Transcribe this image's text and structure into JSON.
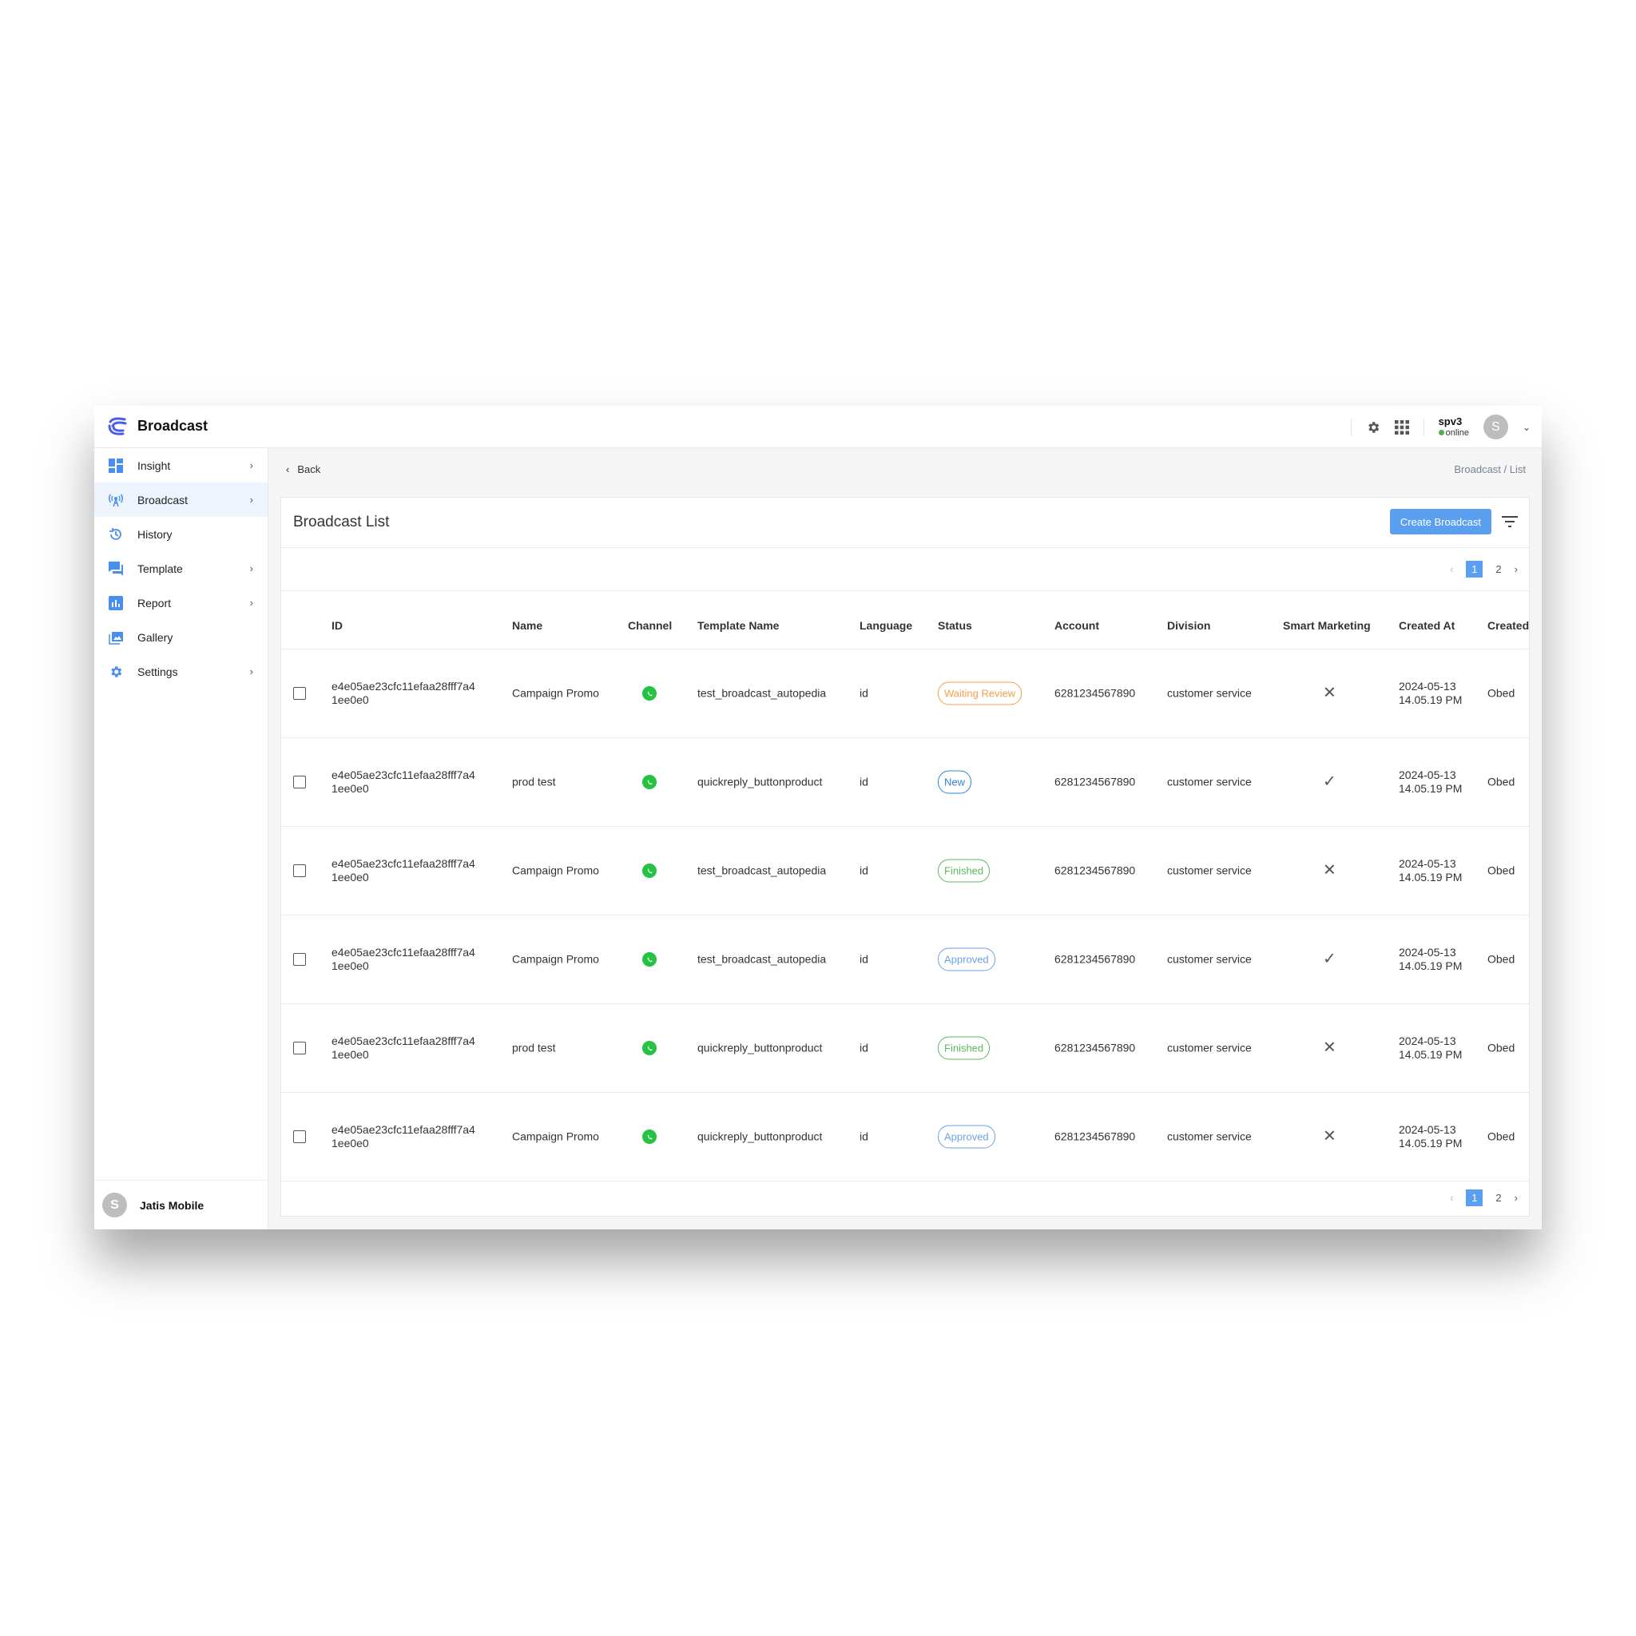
{
  "app": {
    "title": "Broadcast",
    "user_name": "spv3",
    "user_status": "online",
    "avatar_letter": "S"
  },
  "sidebar": {
    "items": [
      {
        "label": "Insight",
        "icon": "dashboard-icon",
        "chevron": true
      },
      {
        "label": "Broadcast",
        "icon": "broadcast-antenna-icon",
        "chevron": true,
        "active": true
      },
      {
        "label": "History",
        "icon": "history-icon",
        "chevron": false
      },
      {
        "label": "Template",
        "icon": "chat-icon",
        "chevron": true
      },
      {
        "label": "Report",
        "icon": "bar-chart-icon",
        "chevron": true
      },
      {
        "label": "Gallery",
        "icon": "gallery-icon",
        "chevron": false
      },
      {
        "label": "Settings",
        "icon": "gear-icon",
        "chevron": true
      }
    ],
    "footer": {
      "avatar_letter": "S",
      "org": "Jatis Mobile"
    }
  },
  "nav": {
    "back": "Back",
    "breadcrumb": "Broadcast / List"
  },
  "card": {
    "title": "Broadcast List",
    "create_button": "Create Broadcast"
  },
  "pagination": {
    "current": "1",
    "next_page": "2",
    "prev": "‹",
    "next": "›"
  },
  "table": {
    "columns": [
      "ID",
      "Name",
      "Channel",
      "Template Name",
      "Language",
      "Status",
      "Account",
      "Division",
      "Smart Marketing",
      "Created At",
      "Created"
    ],
    "rows": [
      {
        "id1": "e4e05ae23cfc11efaa28fff7a4",
        "id2": "1ee0e0",
        "name": "Campaign Promo",
        "template": "test_broadcast_autopedia",
        "lang": "id",
        "status": "Waiting Review",
        "status_color": "#f5a04a",
        "account": "6281234567890",
        "division": "customer service",
        "smart": "✕",
        "date": "2024-05-13",
        "time": "14.05.19 PM",
        "created": "Obed"
      },
      {
        "id1": "e4e05ae23cfc11efaa28fff7a4",
        "id2": "1ee0e0",
        "name": "prod test",
        "template": "quickreply_buttonproduct",
        "lang": "id",
        "status": "New",
        "status_color": "#2f86d6",
        "account": "6281234567890",
        "division": "customer service",
        "smart": "✓",
        "date": "2024-05-13",
        "time": "14.05.19 PM",
        "created": "Obed"
      },
      {
        "id1": "e4e05ae23cfc11efaa28fff7a4",
        "id2": "1ee0e0",
        "name": "Campaign Promo",
        "template": "test_broadcast_autopedia",
        "lang": "id",
        "status": "Finished",
        "status_color": "#5cb85c",
        "account": "6281234567890",
        "division": "customer service",
        "smart": "✕",
        "date": "2024-05-13",
        "time": "14.05.19 PM",
        "created": "Obed"
      },
      {
        "id1": "e4e05ae23cfc11efaa28fff7a4",
        "id2": "1ee0e0",
        "name": "Campaign Promo",
        "template": "test_broadcast_autopedia",
        "lang": "id",
        "status": "Approved",
        "status_color": "#6aa3e8",
        "account": "6281234567890",
        "division": "customer service",
        "smart": "✓",
        "date": "2024-05-13",
        "time": "14.05.19 PM",
        "created": "Obed"
      },
      {
        "id1": "e4e05ae23cfc11efaa28fff7a4",
        "id2": "1ee0e0",
        "name": "prod test",
        "template": "quickreply_buttonproduct",
        "lang": "id",
        "status": "Finished",
        "status_color": "#5cb85c",
        "account": "6281234567890",
        "division": "customer service",
        "smart": "✕",
        "date": "2024-05-13",
        "time": "14.05.19 PM",
        "created": "Obed"
      },
      {
        "id1": "e4e05ae23cfc11efaa28fff7a4",
        "id2": "1ee0e0",
        "name": "Campaign Promo",
        "template": "quickreply_buttonproduct",
        "lang": "id",
        "status": "Approved",
        "status_color": "#6aa3e8",
        "account": "6281234567890",
        "division": "customer service",
        "smart": "✕",
        "date": "2024-05-13",
        "time": "14.05.19 PM",
        "created": "Obed"
      }
    ]
  }
}
